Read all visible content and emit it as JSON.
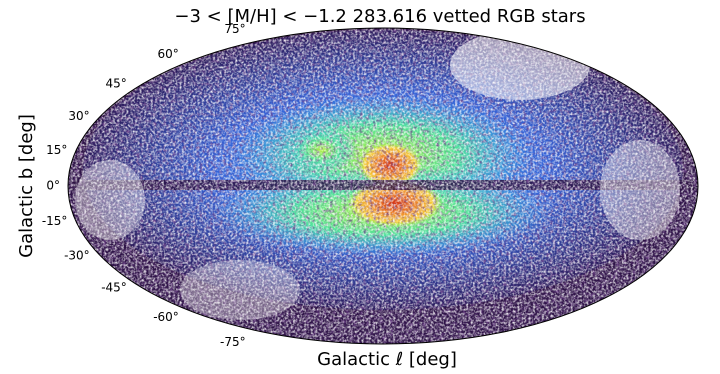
{
  "map": {
    "projection": "hammer",
    "title": "−3 < [M/H] < −1.2    283.616 vetted RGB stars",
    "xlabel": "Galactic ℓ [deg]",
    "ylabel": "Galactic b [deg]",
    "lat_ticks": [
      {
        "value": 75,
        "label": "75°"
      },
      {
        "value": 60,
        "label": "60°"
      },
      {
        "value": 45,
        "label": "45°"
      },
      {
        "value": 30,
        "label": "30°"
      },
      {
        "value": 15,
        "label": "15°"
      },
      {
        "value": 0,
        "label": "0°"
      },
      {
        "value": -15,
        "label": "-15°"
      },
      {
        "value": -30,
        "label": "-30°"
      },
      {
        "value": -45,
        "label": "-45°"
      },
      {
        "value": -60,
        "label": "-60°"
      },
      {
        "value": -75,
        "label": "-75°"
      }
    ]
  }
}
